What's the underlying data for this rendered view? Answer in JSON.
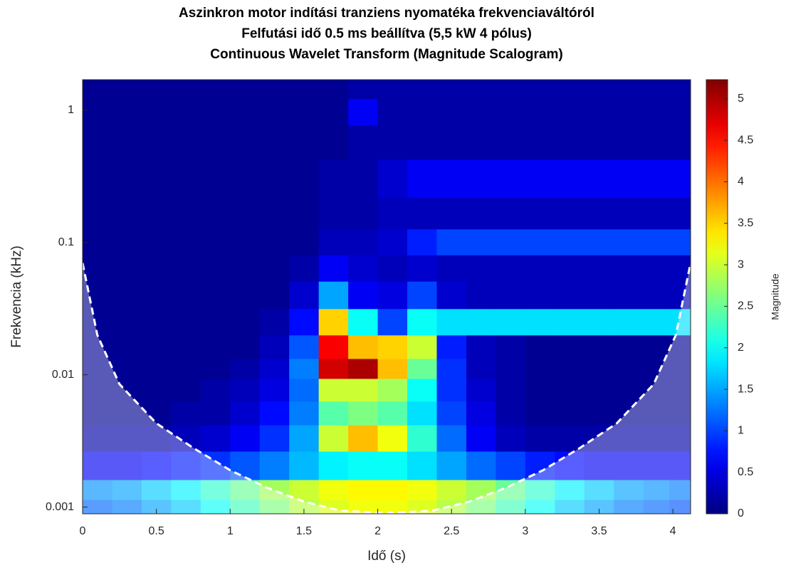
{
  "chart_data": {
    "type": "heatmap",
    "title": [
      "Aszinkron motor indítási tranziens nyomatéka frekvenciaváltóról",
      "Felfutási idő 0.5 ms beállítva (5,5 kW 4 pólus)",
      "Continuous Wavelet Transform (Magnitude Scalogram)"
    ],
    "x_label": "Idő (s)",
    "y_label": "Frekvencia (kHz)",
    "colorbar_label": "Magnitude",
    "xlim": [
      0,
      4.12
    ],
    "xticks": [
      0,
      0.5,
      1,
      1.5,
      2,
      2.5,
      3,
      3.5,
      4
    ],
    "ylim": [
      0.00089,
      1.7
    ],
    "yticks": [
      0.001,
      0.01,
      0.1,
      1
    ],
    "yscale": "log",
    "clim": [
      0,
      5.23
    ],
    "cticks": [
      0,
      0.5,
      1,
      1.5,
      2,
      2.5,
      3,
      3.5,
      4,
      4.5,
      5
    ],
    "colormap": "jet",
    "x": [
      0.1,
      0.3,
      0.5,
      0.7,
      0.9,
      1.1,
      1.3,
      1.5,
      1.7,
      1.9,
      2.1,
      2.3,
      2.5,
      2.7,
      2.9,
      3.1,
      3.3,
      3.5,
      3.7,
      3.9,
      4.05
    ],
    "y": [
      0.001,
      0.0013,
      0.002,
      0.0035,
      0.005,
      0.008,
      0.011,
      0.016,
      0.025,
      0.04,
      0.065,
      0.1,
      0.16,
      0.3,
      0.6,
      1,
      1.5
    ],
    "z": [
      [
        1.2,
        1.3,
        1.5,
        1.7,
        2.0,
        2.3,
        2.6,
        2.9,
        3.1,
        3.2,
        3.2,
        3.1,
        2.9,
        2.6,
        2.3,
        2.0,
        1.7,
        1.5,
        1.3,
        1.2,
        1.1
      ],
      [
        1.4,
        1.5,
        1.7,
        1.9,
        2.2,
        2.5,
        2.8,
        3.0,
        3.2,
        3.3,
        3.3,
        3.2,
        3.0,
        2.8,
        2.5,
        2.2,
        1.9,
        1.7,
        1.5,
        1.4,
        1.3
      ],
      [
        0.6,
        0.6,
        0.7,
        0.8,
        0.9,
        1.1,
        1.3,
        1.6,
        1.9,
        2.0,
        2.0,
        1.8,
        1.5,
        1.2,
        1.0,
        0.8,
        0.7,
        0.6,
        0.6,
        0.6,
        0.6
      ],
      [
        0.2,
        0.2,
        0.2,
        0.3,
        0.4,
        0.6,
        0.9,
        1.5,
        3.0,
        3.6,
        3.2,
        2.2,
        1.2,
        0.6,
        0.3,
        0.2,
        0.2,
        0.2,
        0.2,
        0.2,
        0.2
      ],
      [
        0.1,
        0.1,
        0.1,
        0.2,
        0.2,
        0.4,
        0.7,
        1.3,
        2.4,
        2.6,
        2.4,
        1.8,
        1.0,
        0.5,
        0.2,
        0.1,
        0.1,
        0.1,
        0.1,
        0.1,
        0.1
      ],
      [
        0.1,
        0.1,
        0.1,
        0.1,
        0.2,
        0.3,
        0.5,
        1.2,
        3.0,
        3.0,
        2.8,
        2.0,
        0.9,
        0.4,
        0.2,
        0.1,
        0.1,
        0.1,
        0.1,
        0.1,
        0.1
      ],
      [
        0.1,
        0.1,
        0.1,
        0.1,
        0.1,
        0.2,
        0.4,
        1.3,
        4.8,
        5.0,
        3.6,
        2.5,
        0.9,
        0.3,
        0.2,
        0.1,
        0.1,
        0.1,
        0.1,
        0.1,
        0.1
      ],
      [
        0.1,
        0.1,
        0.1,
        0.1,
        0.1,
        0.1,
        0.3,
        1.1,
        4.6,
        3.6,
        3.5,
        3.0,
        0.8,
        0.3,
        0.2,
        0.1,
        0.1,
        0.1,
        0.1,
        0.1,
        0.1
      ],
      [
        0.1,
        0.1,
        0.1,
        0.1,
        0.1,
        0.1,
        0.2,
        0.7,
        3.5,
        2.0,
        1.0,
        2.0,
        1.8,
        1.8,
        1.8,
        1.8,
        1.8,
        1.8,
        1.8,
        1.8,
        1.8
      ],
      [
        0.1,
        0.1,
        0.1,
        0.1,
        0.1,
        0.1,
        0.1,
        0.4,
        1.5,
        0.6,
        0.5,
        1.0,
        0.4,
        0.3,
        0.3,
        0.3,
        0.3,
        0.3,
        0.3,
        0.3,
        0.3
      ],
      [
        0.1,
        0.1,
        0.1,
        0.1,
        0.1,
        0.1,
        0.1,
        0.2,
        0.6,
        0.4,
        0.3,
        0.4,
        0.3,
        0.3,
        0.3,
        0.3,
        0.3,
        0.3,
        0.3,
        0.3,
        0.3
      ],
      [
        0.1,
        0.1,
        0.1,
        0.1,
        0.1,
        0.1,
        0.1,
        0.1,
        0.3,
        0.3,
        0.4,
        0.8,
        1.0,
        1.0,
        1.0,
        1.0,
        1.0,
        1.0,
        1.0,
        1.0,
        1.0
      ],
      [
        0.1,
        0.1,
        0.1,
        0.1,
        0.1,
        0.1,
        0.1,
        0.1,
        0.2,
        0.2,
        0.3,
        0.3,
        0.3,
        0.3,
        0.3,
        0.3,
        0.3,
        0.3,
        0.3,
        0.3,
        0.3
      ],
      [
        0.1,
        0.1,
        0.1,
        0.1,
        0.1,
        0.1,
        0.1,
        0.1,
        0.2,
        0.2,
        0.4,
        0.6,
        0.6,
        0.6,
        0.6,
        0.6,
        0.6,
        0.6,
        0.6,
        0.6,
        0.6
      ],
      [
        0.1,
        0.1,
        0.1,
        0.1,
        0.1,
        0.1,
        0.1,
        0.1,
        0.1,
        0.2,
        0.2,
        0.2,
        0.2,
        0.2,
        0.2,
        0.2,
        0.2,
        0.2,
        0.2,
        0.2,
        0.2
      ],
      [
        0.1,
        0.1,
        0.1,
        0.1,
        0.1,
        0.1,
        0.1,
        0.1,
        0.1,
        0.6,
        0.2,
        0.2,
        0.2,
        0.2,
        0.2,
        0.2,
        0.2,
        0.2,
        0.2,
        0.2,
        0.2
      ],
      [
        0.1,
        0.1,
        0.1,
        0.1,
        0.1,
        0.1,
        0.1,
        0.1,
        0.1,
        0.2,
        0.2,
        0.2,
        0.2,
        0.2,
        0.2,
        0.2,
        0.2,
        0.2,
        0.2,
        0.2,
        0.2
      ]
    ],
    "coi": {
      "x": [
        0,
        0.1,
        0.25,
        0.5,
        0.75,
        1,
        1.25,
        1.5,
        1.75,
        2.06,
        2.37,
        2.62,
        2.87,
        3.12,
        3.37,
        3.62,
        3.87,
        4.02,
        4.12
      ],
      "y": [
        0.07,
        0.02,
        0.0085,
        0.0043,
        0.0028,
        0.0019,
        0.0014,
        0.0011,
        0.00094,
        0.0009,
        0.00094,
        0.0011,
        0.0014,
        0.0019,
        0.0028,
        0.0043,
        0.0085,
        0.02,
        0.07
      ],
      "color": "#ffffff"
    }
  }
}
